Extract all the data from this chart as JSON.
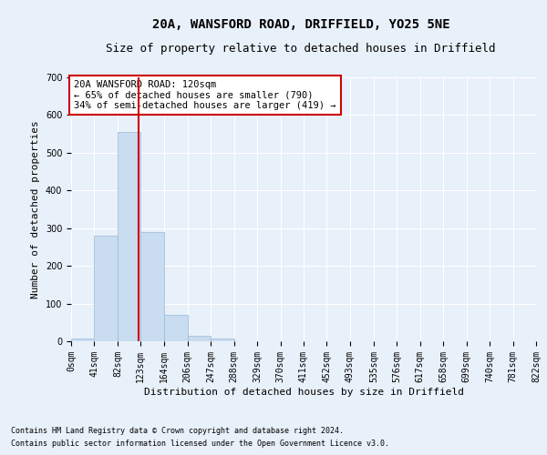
{
  "title": "20A, WANSFORD ROAD, DRIFFIELD, YO25 5NE",
  "subtitle": "Size of property relative to detached houses in Driffield",
  "xlabel": "Distribution of detached houses by size in Driffield",
  "ylabel": "Number of detached properties",
  "footnote1": "Contains HM Land Registry data © Crown copyright and database right 2024.",
  "footnote2": "Contains public sector information licensed under the Open Government Licence v3.0.",
  "bar_edges": [
    0,
    41,
    82,
    123,
    164,
    206,
    247,
    288,
    329,
    370,
    411,
    452,
    493,
    535,
    576,
    617,
    658,
    699,
    740,
    781,
    822
  ],
  "bar_heights": [
    8,
    280,
    555,
    290,
    70,
    14,
    8,
    0,
    0,
    0,
    0,
    0,
    0,
    0,
    0,
    0,
    0,
    0,
    0,
    0
  ],
  "bar_color": "#c9dcf0",
  "bar_edge_color": "#9ab8d8",
  "vline_x": 120,
  "vline_color": "#cc0000",
  "ylim": [
    0,
    700
  ],
  "yticks": [
    0,
    100,
    200,
    300,
    400,
    500,
    600,
    700
  ],
  "tick_labels": [
    "0sqm",
    "41sqm",
    "82sqm",
    "123sqm",
    "164sqm",
    "206sqm",
    "247sqm",
    "288sqm",
    "329sqm",
    "370sqm",
    "411sqm",
    "452sqm",
    "493sqm",
    "535sqm",
    "576sqm",
    "617sqm",
    "658sqm",
    "699sqm",
    "740sqm",
    "781sqm",
    "822sqm"
  ],
  "annotation_text": "20A WANSFORD ROAD: 120sqm\n← 65% of detached houses are smaller (790)\n34% of semi-detached houses are larger (419) →",
  "annotation_box_color": "#ffffff",
  "annotation_border_color": "#cc0000",
  "bg_color": "#e8f0fa",
  "grid_color": "#ffffff",
  "title_fontsize": 10,
  "subtitle_fontsize": 9,
  "label_fontsize": 8,
  "tick_fontsize": 7,
  "annot_fontsize": 7.5,
  "ylabel_fontsize": 8
}
